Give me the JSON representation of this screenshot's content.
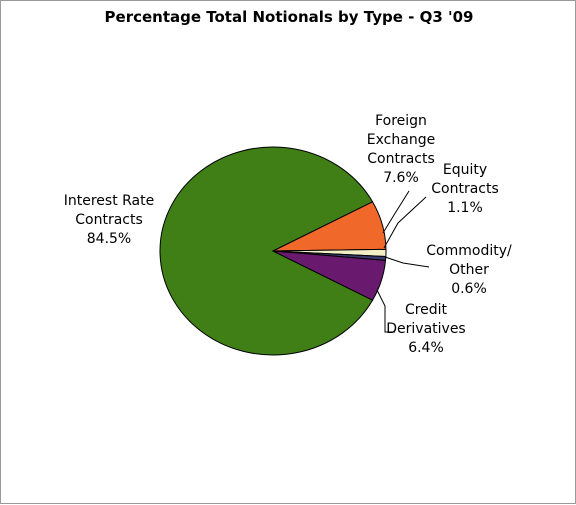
{
  "chart_data": {
    "type": "pie",
    "title": "Percentage Total Notionals by Type - Q3 '09",
    "slices": [
      {
        "name": "Interest Rate Contracts",
        "label_lines": [
          "Interest Rate",
          "Contracts"
        ],
        "value": 84.5,
        "value_label": "84.5%",
        "color": "#3f7f16"
      },
      {
        "name": "Foreign Exchange Contracts",
        "label_lines": [
          "Foreign",
          "Exchange",
          "Contracts"
        ],
        "value": 7.6,
        "value_label": "7.6%",
        "color": "#f0682a"
      },
      {
        "name": "Equity Contracts",
        "label_lines": [
          "Equity",
          "Contracts"
        ],
        "value": 1.1,
        "value_label": "1.1%",
        "color": "#f2efc6"
      },
      {
        "name": "Commodity/ Other",
        "label_lines": [
          "Commodity/",
          "Other"
        ],
        "value": 0.6,
        "value_label": "0.6%",
        "color": "#3a3a6e"
      },
      {
        "name": "Credit Derivatives",
        "label_lines": [
          "Credit",
          "Derivatives"
        ],
        "value": 6.4,
        "value_label": "6.4%",
        "color": "#6a1a6e"
      }
    ]
  }
}
